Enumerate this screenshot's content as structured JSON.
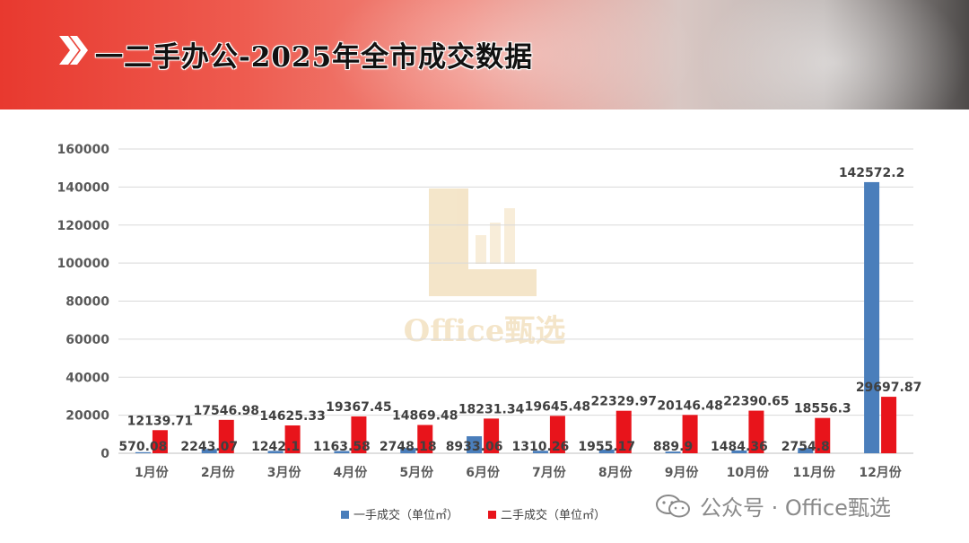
{
  "header": {
    "title": "一二手办公-2025年全市成交数据"
  },
  "watermark": {
    "logo_text": "Office甄选",
    "footer_text": "公众号 · Office甄选"
  },
  "colors": {
    "series1": "#4a7ebb",
    "series2": "#e8141b",
    "banner_red": "#e8392f"
  },
  "chart_data": {
    "type": "bar",
    "categories": [
      "1月份",
      "2月份",
      "3月份",
      "4月份",
      "5月份",
      "6月份",
      "7月份",
      "8月份",
      "9月份",
      "10月份",
      "11月份",
      "12月份"
    ],
    "series": [
      {
        "name": "一手成交（单位㎡）",
        "values": [
          570.08,
          2243.07,
          1242.1,
          1163.58,
          2748.18,
          8933.06,
          1310.26,
          1955.17,
          889.9,
          1484.36,
          2754.8,
          142572.2
        ],
        "labels": [
          "570.08",
          "2243.07",
          "1242.1",
          "1163.58",
          "2748.18",
          "8933.06",
          "1310.26",
          "1955.17",
          "889.9",
          "1484.36",
          "2754.8",
          "142572.2"
        ]
      },
      {
        "name": "二手成交（单位㎡）",
        "values": [
          12139.71,
          17546.98,
          14625.33,
          19367.45,
          14869.48,
          18231.34,
          19645.48,
          22329.97,
          20146.48,
          22390.65,
          18556.3,
          29697.87
        ],
        "labels": [
          "12139.71",
          "17546.98",
          "14625.33",
          "19367.45",
          "14869.48",
          "18231.34",
          "19645.48",
          "22329.97",
          "20146.48",
          "22390.65",
          "18556.3",
          "29697.87"
        ]
      }
    ],
    "yticks": [
      "0",
      "20000",
      "40000",
      "60000",
      "80000",
      "100000",
      "120000",
      "140000",
      "160000"
    ],
    "ylim": [
      0,
      160000
    ],
    "grid": true,
    "legend_position": "bottom"
  }
}
